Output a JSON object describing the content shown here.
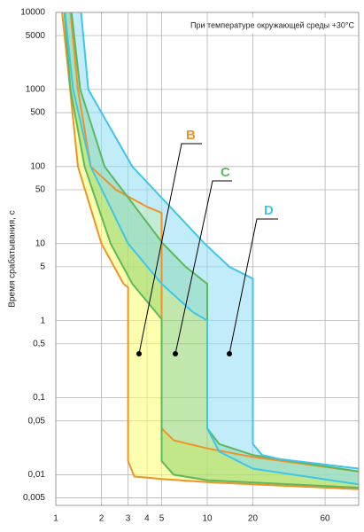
{
  "chart_data": {
    "type": "band",
    "annotation": "При температуре окружающей среды +30°С",
    "y_label": "Время срабатывания, с",
    "xscale": "log",
    "yscale": "log",
    "grid": true,
    "xlim": [
      1,
      100
    ],
    "xticks": [
      1,
      2,
      3,
      4,
      5,
      10,
      20,
      60
    ],
    "ylim": [
      0.004,
      10000
    ],
    "yticks": [
      10000,
      5000,
      1000,
      500,
      100,
      50,
      10,
      5,
      1,
      {
        "value": 0.5,
        "label": "0,5"
      },
      {
        "value": 0.1,
        "label": "0,1"
      },
      {
        "value": 0.05,
        "label": "0,05"
      },
      {
        "value": 0.01,
        "label": "0,01"
      },
      {
        "value": 0.005,
        "label": "0,005"
      }
    ],
    "series": [
      {
        "name": "B",
        "color": "#f0922b",
        "fill": "#ffff70",
        "lower_x": [
          1.1,
          1.2,
          1.4,
          2,
          2.8,
          3,
          3,
          3.3,
          5,
          10,
          20,
          100
        ],
        "lower_y": [
          10000,
          2000,
          100,
          10,
          3,
          2.7,
          0.015,
          0.0095,
          0.0088,
          0.008,
          0.0075,
          0.0065
        ],
        "upper_x": [
          1.25,
          1.4,
          1.7,
          2.5,
          4,
          5,
          5,
          6,
          10,
          20,
          100
        ],
        "upper_y": [
          10000,
          1000,
          100,
          50,
          30,
          25,
          0.04,
          0.028,
          0.022,
          0.017,
          0.011
        ]
      },
      {
        "name": "C",
        "color": "#5cb85c",
        "fill": "#8fd36a",
        "lower_x": [
          1.14,
          1.25,
          1.55,
          2.3,
          3.2,
          5,
          5,
          6,
          10,
          100
        ],
        "lower_y": [
          10000,
          1000,
          100,
          10,
          3,
          1.05,
          0.015,
          0.01,
          0.0085,
          0.0068
        ],
        "upper_x": [
          1.27,
          1.45,
          2.1,
          5.1,
          7.2,
          10,
          10,
          12,
          20,
          100
        ],
        "upper_y": [
          10000,
          1000,
          100,
          10,
          5,
          3,
          0.04,
          0.025,
          0.018,
          0.011
        ]
      },
      {
        "name": "D",
        "color": "#3ec6ea",
        "fill": "#8fdcf5",
        "lower_x": [
          1.15,
          1.3,
          1.7,
          3,
          5,
          8,
          10,
          10,
          12,
          20,
          100
        ],
        "lower_y": [
          10000,
          1000,
          100,
          10,
          3,
          1.3,
          1,
          0.04,
          0.02,
          0.012,
          0.0075
        ],
        "upper_x": [
          1.47,
          1.64,
          3.2,
          9.6,
          14,
          20,
          20,
          23,
          30,
          100
        ],
        "upper_y": [
          10000,
          1000,
          100,
          10,
          5,
          3.5,
          0.025,
          0.018,
          0.016,
          0.012
        ]
      }
    ]
  }
}
